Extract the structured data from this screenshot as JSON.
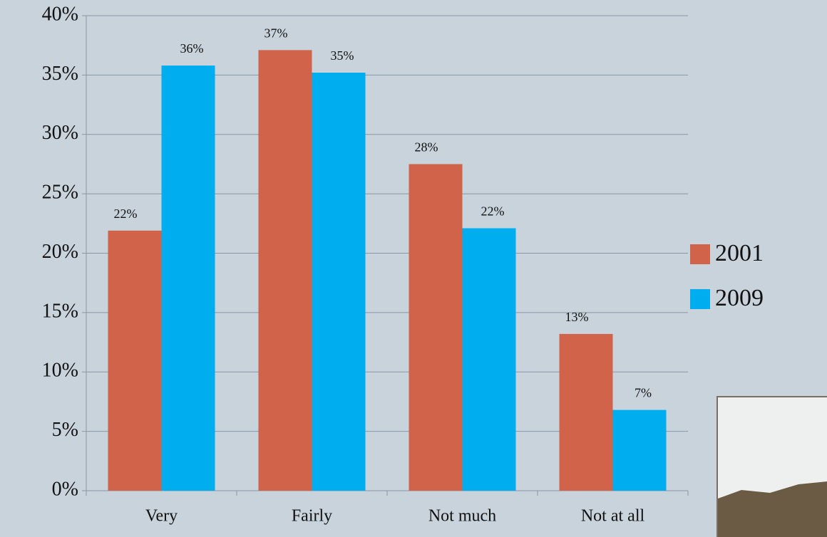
{
  "chart_data": {
    "type": "bar",
    "categories": [
      "Very",
      "Fairly",
      "Not much",
      "Not at all"
    ],
    "series": [
      {
        "name": "2001",
        "color": "#d0634a",
        "values": [
          21.9,
          37.1,
          27.5,
          13.2
        ],
        "value_labels": [
          "22%",
          "37%",
          "28%",
          "13%"
        ]
      },
      {
        "name": "2009",
        "color": "#00adee",
        "values": [
          35.8,
          35.2,
          22.1,
          6.8
        ],
        "value_labels": [
          "36%",
          "35%",
          "22%",
          "7%"
        ]
      }
    ],
    "ylim": [
      0,
      40
    ],
    "yticks": [
      {
        "value": 0,
        "label": "0%"
      },
      {
        "value": 5,
        "label": "5%"
      },
      {
        "value": 10,
        "label": "10%"
      },
      {
        "value": 15,
        "label": "15%"
      },
      {
        "value": 20,
        "label": "20%"
      },
      {
        "value": 25,
        "label": "25%"
      },
      {
        "value": 30,
        "label": "30%"
      },
      {
        "value": 35,
        "label": "35%"
      },
      {
        "value": 40,
        "label": "40%"
      }
    ],
    "grid": true,
    "legend": "right"
  }
}
